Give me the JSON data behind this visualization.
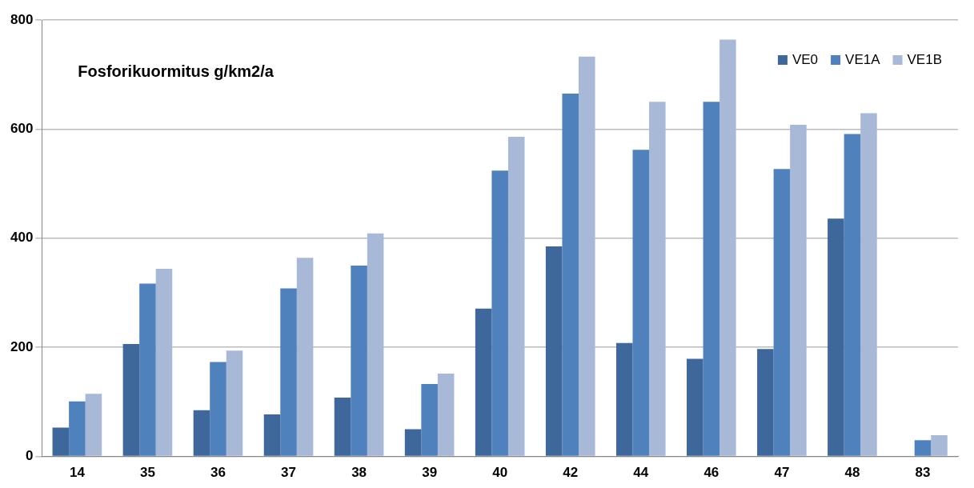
{
  "chart_data": {
    "type": "bar",
    "title": "Fosforikuormitus g/km2/a",
    "categories": [
      "14",
      "35",
      "36",
      "37",
      "38",
      "39",
      "40",
      "42",
      "44",
      "46",
      "47",
      "48",
      "83"
    ],
    "series": [
      {
        "name": "VE0",
        "color": "#3e689c",
        "values": [
          53,
          206,
          85,
          77,
          108,
          50,
          271,
          385,
          208,
          179,
          197,
          436,
          null
        ]
      },
      {
        "name": "VE1A",
        "color": "#4f81bd",
        "values": [
          101,
          317,
          173,
          308,
          350,
          133,
          524,
          665,
          562,
          650,
          527,
          591,
          30
        ]
      },
      {
        "name": "VE1B",
        "color": "#a8b9d8",
        "values": [
          115,
          344,
          194,
          364,
          409,
          152,
          586,
          733,
          650,
          764,
          608,
          629,
          39
        ]
      }
    ],
    "ylim": [
      0,
      800
    ],
    "yticks": [
      0,
      200,
      400,
      600,
      800
    ],
    "grid": "y",
    "legend": "top right"
  }
}
